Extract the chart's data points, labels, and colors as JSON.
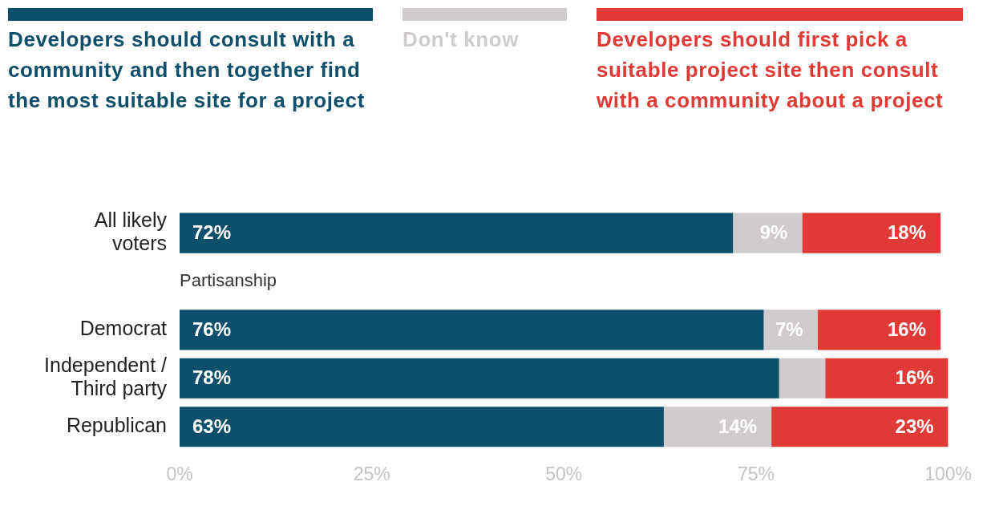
{
  "chart_data": {
    "type": "bar",
    "orientation": "horizontal",
    "stacked": true,
    "legend": "top",
    "grid": false,
    "categories": [
      "All likely voters",
      null,
      "Democrat",
      "Independent / Third party",
      "Republican"
    ],
    "series": [
      {
        "name": "Developers should consult with a community and then together find the most suitable site for a project",
        "color": "#0e4f6b",
        "values": [
          72,
          null,
          76,
          78,
          63
        ],
        "value_labels": [
          "72%",
          null,
          "76%",
          "78%",
          "63%"
        ]
      },
      {
        "name": "Don't know",
        "color": "#cfcbcf",
        "values": [
          9,
          null,
          7,
          6,
          14
        ],
        "value_labels": [
          "9%",
          null,
          "7%",
          null,
          "14%"
        ]
      },
      {
        "name": "Developers should first pick a suitable project site then consult with a community about a project",
        "color": "#df3a36",
        "values": [
          18,
          null,
          16,
          16,
          23
        ],
        "value_labels": [
          "18%",
          null,
          "16%",
          "16%",
          "23%"
        ]
      }
    ],
    "xlim": [
      0,
      100
    ],
    "xticks": [
      {
        "value": 0,
        "label": "0%"
      },
      {
        "value": 25,
        "label": "25%"
      },
      {
        "value": 50,
        "label": "50%"
      },
      {
        "value": 75,
        "label": "75%"
      },
      {
        "value": 100,
        "label": "100%"
      }
    ],
    "annotations": [
      "Partisanship"
    ]
  }
}
